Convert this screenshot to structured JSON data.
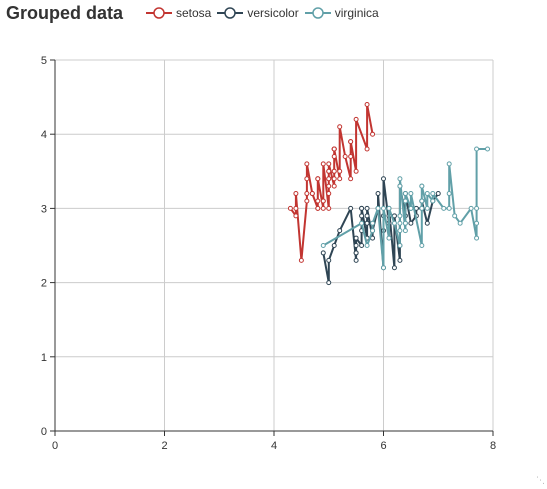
{
  "chart_data": {
    "type": "line",
    "title": "Grouped data",
    "xlabel": "",
    "ylabel": "",
    "xlim": [
      0,
      8
    ],
    "ylim": [
      0,
      5
    ],
    "xticks": [
      0,
      2,
      4,
      6,
      8
    ],
    "yticks": [
      0,
      1,
      2,
      3,
      4,
      5
    ],
    "grid": true,
    "legend_position": "top",
    "series": [
      {
        "name": "setosa",
        "color": "#c23531",
        "x": [
          4.3,
          4.4,
          4.4,
          4.4,
          4.5,
          4.6,
          4.6,
          4.6,
          4.6,
          4.7,
          4.7,
          4.8,
          4.8,
          4.8,
          4.8,
          4.8,
          4.9,
          4.9,
          4.9,
          4.9,
          5.0,
          5.0,
          5.0,
          5.0,
          5.0,
          5.0,
          5.0,
          5.0,
          5.1,
          5.1,
          5.1,
          5.1,
          5.1,
          5.1,
          5.1,
          5.1,
          5.1,
          5.2,
          5.2,
          5.2,
          5.3,
          5.4,
          5.4,
          5.4,
          5.4,
          5.5,
          5.5,
          5.7,
          5.7,
          5.8
        ],
        "y": [
          3.0,
          2.9,
          3.0,
          3.2,
          2.3,
          3.1,
          3.2,
          3.4,
          3.6,
          3.2,
          3.2,
          3.0,
          3.0,
          3.1,
          3.4,
          3.4,
          3.0,
          3.1,
          3.1,
          3.6,
          3.0,
          3.2,
          3.3,
          3.4,
          3.4,
          3.5,
          3.5,
          3.6,
          3.3,
          3.4,
          3.5,
          3.5,
          3.7,
          3.8,
          3.8,
          3.8,
          3.8,
          3.4,
          3.5,
          4.1,
          3.7,
          3.4,
          3.7,
          3.9,
          3.9,
          3.5,
          4.2,
          3.8,
          4.4,
          4.0
        ]
      },
      {
        "name": "versicolor",
        "color": "#2f4554",
        "x": [
          4.9,
          5.0,
          5.0,
          5.1,
          5.2,
          5.4,
          5.5,
          5.5,
          5.5,
          5.5,
          5.5,
          5.6,
          5.6,
          5.6,
          5.6,
          5.6,
          5.7,
          5.7,
          5.7,
          5.7,
          5.7,
          5.8,
          5.8,
          5.8,
          5.9,
          5.9,
          6.0,
          6.0,
          6.0,
          6.0,
          6.1,
          6.1,
          6.1,
          6.1,
          6.2,
          6.2,
          6.3,
          6.3,
          6.3,
          6.4,
          6.4,
          6.5,
          6.6,
          6.6,
          6.7,
          6.7,
          6.7,
          6.8,
          6.9,
          7.0
        ],
        "y": [
          2.4,
          2.0,
          2.3,
          2.5,
          2.7,
          3.0,
          2.3,
          2.4,
          2.4,
          2.5,
          2.6,
          2.5,
          2.7,
          2.9,
          3.0,
          3.0,
          2.6,
          2.8,
          2.8,
          2.9,
          3.0,
          2.6,
          2.7,
          2.7,
          3.0,
          3.2,
          2.2,
          2.7,
          2.9,
          3.4,
          2.8,
          2.8,
          2.9,
          3.0,
          2.2,
          2.9,
          2.3,
          2.5,
          3.3,
          2.9,
          3.2,
          2.8,
          2.9,
          3.0,
          3.0,
          3.1,
          3.1,
          2.8,
          3.1,
          3.2
        ]
      },
      {
        "name": "virginica",
        "color": "#61a0a8",
        "x": [
          4.9,
          5.6,
          5.7,
          5.8,
          5.8,
          5.8,
          5.9,
          6.0,
          6.0,
          6.1,
          6.1,
          6.2,
          6.3,
          6.3,
          6.3,
          6.3,
          6.3,
          6.3,
          6.4,
          6.4,
          6.4,
          6.4,
          6.4,
          6.5,
          6.5,
          6.5,
          6.5,
          6.7,
          6.7,
          6.7,
          6.7,
          6.7,
          6.8,
          6.8,
          6.9,
          6.9,
          6.9,
          7.1,
          7.2,
          7.2,
          7.2,
          7.3,
          7.4,
          7.6,
          7.7,
          7.7,
          7.7,
          7.7,
          7.9
        ],
        "y": [
          2.5,
          2.8,
          2.5,
          2.7,
          2.7,
          2.8,
          3.0,
          2.2,
          3.0,
          2.6,
          3.0,
          2.8,
          2.5,
          2.7,
          2.8,
          2.9,
          3.3,
          3.4,
          2.7,
          2.8,
          2.8,
          3.1,
          3.2,
          3.0,
          3.0,
          3.0,
          3.2,
          2.5,
          3.0,
          3.1,
          3.3,
          3.3,
          3.0,
          3.2,
          3.1,
          3.1,
          3.2,
          3.0,
          3.0,
          3.2,
          3.6,
          2.9,
          2.8,
          3.0,
          2.6,
          2.8,
          3.0,
          3.8,
          3.8
        ]
      }
    ]
  }
}
